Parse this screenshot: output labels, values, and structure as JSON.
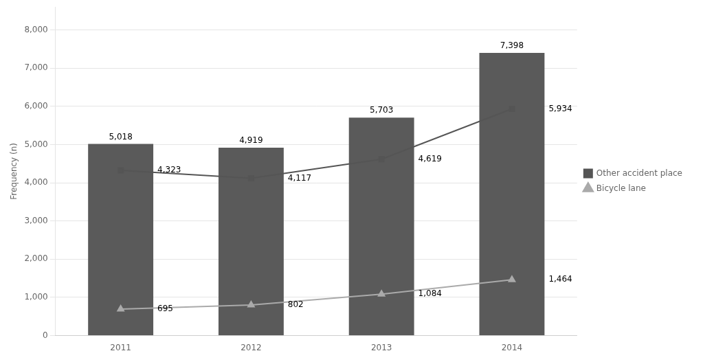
{
  "chart_data": {
    "type": "bar",
    "categories": [
      "2011",
      "2012",
      "2013",
      "2014"
    ],
    "y_label": "Frequency (n)",
    "series": [
      {
        "type": "bar",
        "color": "#5a5a5a",
        "values": [
          5018,
          4919,
          5703,
          7398
        ],
        "value_labels": [
          "5,018",
          "4,919",
          "5,703",
          "7,398"
        ]
      },
      {
        "name": "Other accident place",
        "type": "line",
        "color": "#555555",
        "marker": "square",
        "values": [
          4323,
          4117,
          4619,
          5934
        ],
        "value_labels": [
          "4,323",
          "4,117",
          "4,619",
          "5,934"
        ]
      },
      {
        "name": "Bicycle lane",
        "type": "line",
        "color": "#aaaaaa",
        "marker": "triangle",
        "values": [
          695,
          802,
          1084,
          1464
        ],
        "value_labels": [
          "695",
          "802",
          "1,084",
          "1,464"
        ]
      }
    ],
    "ylim": [
      0,
      8600
    ],
    "yticks": [
      0,
      {
        "value": 1000,
        "label": "1,000"
      },
      {
        "value": 2000,
        "label": "2,000"
      },
      {
        "value": 3000,
        "label": "3,000"
      },
      {
        "value": 4000,
        "label": "4,000"
      },
      {
        "value": 5000,
        "label": "5,000"
      },
      {
        "value": 6000,
        "label": "6,000"
      },
      {
        "value": 7000,
        "label": "7,000"
      },
      {
        "value": 8000,
        "label": "8,000"
      }
    ],
    "grid": true,
    "legend": "right",
    "data_labels": true
  }
}
